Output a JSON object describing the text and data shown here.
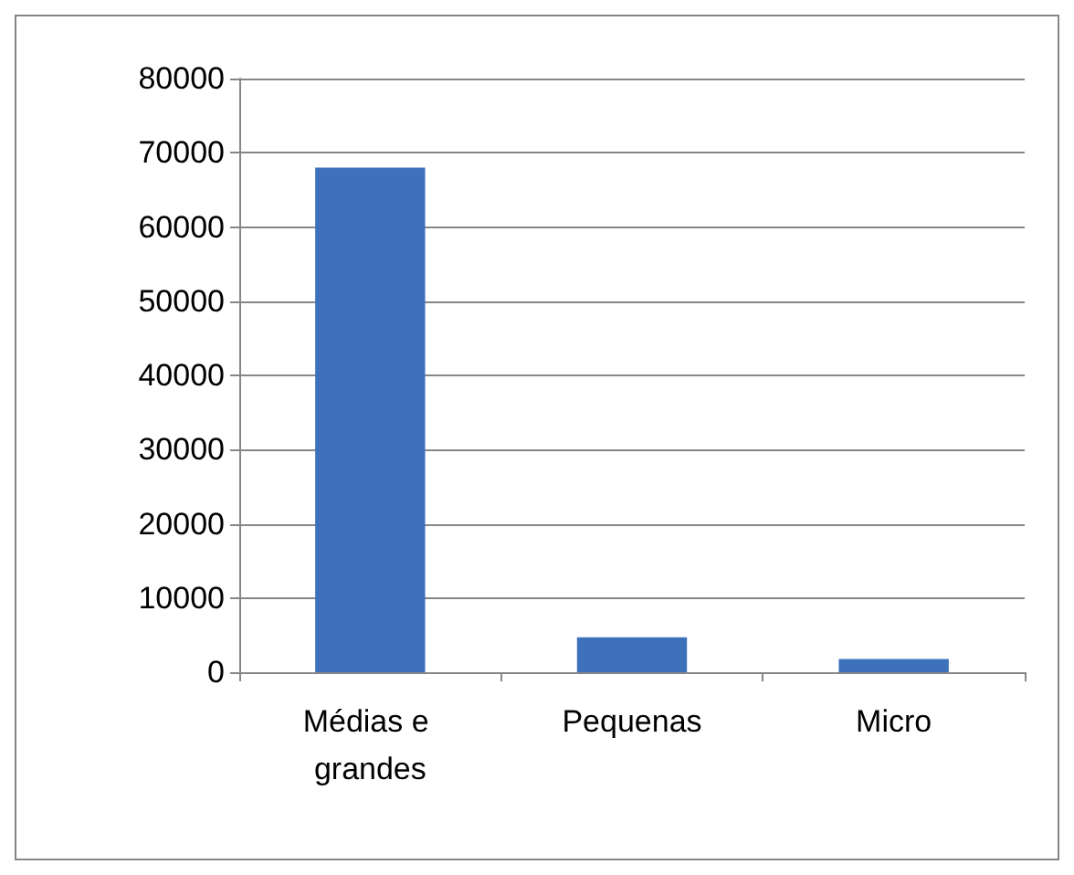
{
  "chart_data": {
    "type": "bar",
    "categories": [
      "Médias e grandes",
      "Pequenas",
      "Micro"
    ],
    "values": [
      68000,
      4700,
      1800
    ],
    "color": "#3d72bb",
    "ylim": [
      0,
      80000
    ],
    "yticks": [
      0,
      10000,
      20000,
      30000,
      40000,
      50000,
      60000,
      70000,
      80000
    ],
    "grid": "y"
  }
}
